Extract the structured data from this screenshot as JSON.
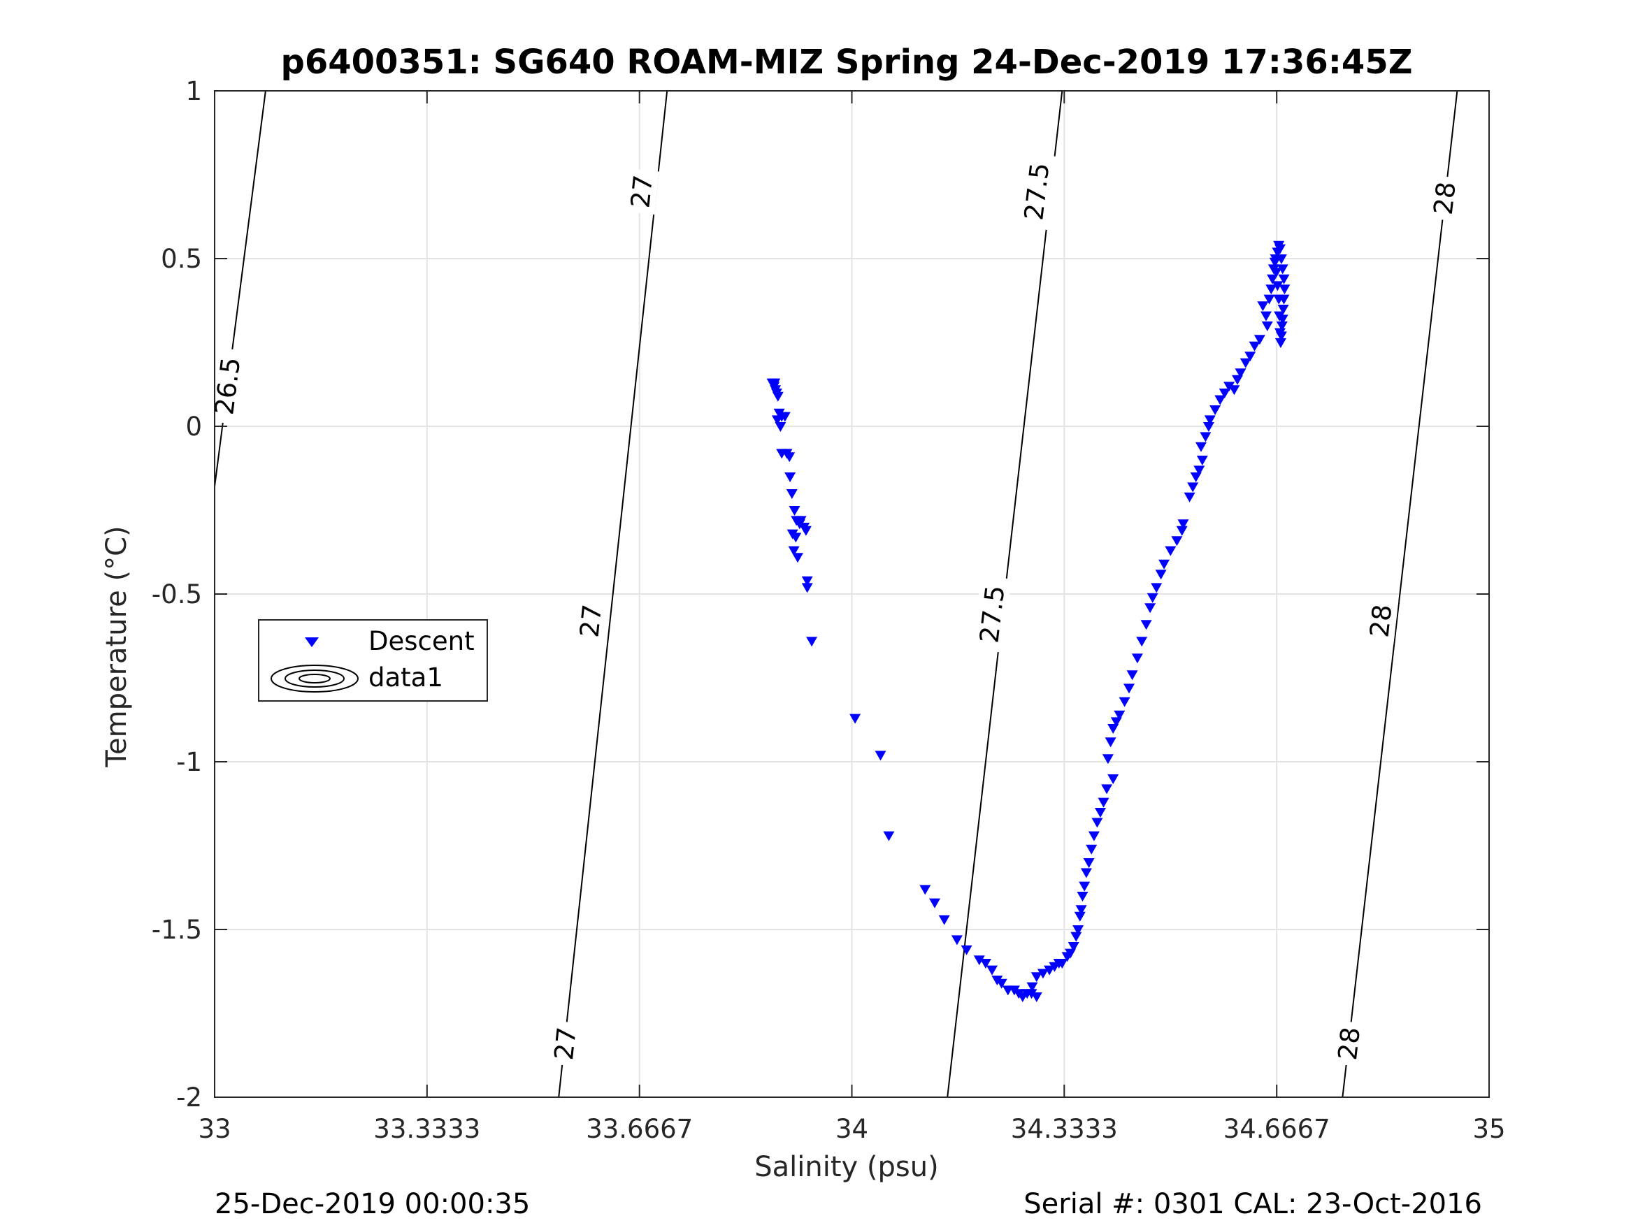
{
  "chart_data": {
    "type": "scatter",
    "title": "p6400351: SG640 ROAM-MIZ Spring 24-Dec-2019 17:36:45Z",
    "xlabel": "Salinity (psu)",
    "ylabel": "Temperature (°C)",
    "xlim": [
      33,
      35
    ],
    "ylim": [
      -2,
      1
    ],
    "xticks": [
      33,
      33.3333,
      33.6667,
      34,
      34.3333,
      34.6667,
      35
    ],
    "xtick_labels": [
      "33",
      "33.3333",
      "33.6667",
      "34",
      "34.3333",
      "34.6667",
      "35"
    ],
    "yticks": [
      -2,
      -1.5,
      -1,
      -0.5,
      0,
      0.5,
      1
    ],
    "ytick_labels": [
      "-2",
      "-1.5",
      "-1",
      "-0.5",
      "0",
      "0.5",
      "1"
    ],
    "grid": true,
    "legend": {
      "placement": "left-middle",
      "entries": [
        "Descent",
        "data1"
      ]
    },
    "series": [
      {
        "name": "Descent",
        "marker": "triangle-down",
        "color": "#0000ff",
        "points": [
          [
            33.875,
            0.13
          ],
          [
            33.878,
            0.12
          ],
          [
            33.88,
            0.11
          ],
          [
            33.882,
            0.1
          ],
          [
            33.879,
            0.13
          ],
          [
            33.884,
            0.09
          ],
          [
            33.886,
            0.04
          ],
          [
            33.89,
            0.03
          ],
          [
            33.888,
            0.0
          ],
          [
            33.883,
            0.02
          ],
          [
            33.895,
            0.03
          ],
          [
            33.89,
            -0.08
          ],
          [
            33.898,
            -0.08
          ],
          [
            33.902,
            -0.09
          ],
          [
            33.903,
            -0.15
          ],
          [
            33.906,
            -0.2
          ],
          [
            33.91,
            -0.25
          ],
          [
            33.913,
            -0.28
          ],
          [
            33.918,
            -0.29
          ],
          [
            33.925,
            -0.3
          ],
          [
            33.92,
            -0.28
          ],
          [
            33.912,
            -0.33
          ],
          [
            33.907,
            -0.32
          ],
          [
            33.909,
            -0.37
          ],
          [
            33.915,
            -0.39
          ],
          [
            33.928,
            -0.31
          ],
          [
            33.93,
            -0.46
          ],
          [
            33.93,
            -0.48
          ],
          [
            33.937,
            -0.64
          ],
          [
            34.005,
            -0.87
          ],
          [
            34.045,
            -0.98
          ],
          [
            34.058,
            -1.22
          ],
          [
            34.115,
            -1.38
          ],
          [
            34.13,
            -1.42
          ],
          [
            34.145,
            -1.47
          ],
          [
            34.165,
            -1.53
          ],
          [
            34.18,
            -1.56
          ],
          [
            34.2,
            -1.59
          ],
          [
            34.21,
            -1.6
          ],
          [
            34.22,
            -1.62
          ],
          [
            34.228,
            -1.65
          ],
          [
            34.235,
            -1.66
          ],
          [
            34.245,
            -1.68
          ],
          [
            34.255,
            -1.68
          ],
          [
            34.262,
            -1.69
          ],
          [
            34.268,
            -1.7
          ],
          [
            34.275,
            -1.69
          ],
          [
            34.282,
            -1.69
          ],
          [
            34.29,
            -1.7
          ],
          [
            34.283,
            -1.67
          ],
          [
            34.29,
            -1.64
          ],
          [
            34.3,
            -1.63
          ],
          [
            34.31,
            -1.62
          ],
          [
            34.318,
            -1.61
          ],
          [
            34.325,
            -1.6
          ],
          [
            34.33,
            -1.6
          ],
          [
            34.338,
            -1.58
          ],
          [
            34.343,
            -1.57
          ],
          [
            34.348,
            -1.55
          ],
          [
            34.352,
            -1.52
          ],
          [
            34.355,
            -1.5
          ],
          [
            34.358,
            -1.46
          ],
          [
            34.36,
            -1.44
          ],
          [
            34.362,
            -1.4
          ],
          [
            34.365,
            -1.37
          ],
          [
            34.368,
            -1.33
          ],
          [
            34.372,
            -1.3
          ],
          [
            34.376,
            -1.26
          ],
          [
            34.38,
            -1.22
          ],
          [
            34.385,
            -1.18
          ],
          [
            34.39,
            -1.15
          ],
          [
            34.395,
            -1.12
          ],
          [
            34.4,
            -1.08
          ],
          [
            34.41,
            -1.05
          ],
          [
            34.402,
            -0.99
          ],
          [
            34.406,
            -0.94
          ],
          [
            34.41,
            -0.9
          ],
          [
            34.415,
            -0.88
          ],
          [
            34.42,
            -0.86
          ],
          [
            34.428,
            -0.82
          ],
          [
            34.435,
            -0.78
          ],
          [
            34.44,
            -0.74
          ],
          [
            34.448,
            -0.69
          ],
          [
            34.455,
            -0.64
          ],
          [
            34.462,
            -0.59
          ],
          [
            34.468,
            -0.54
          ],
          [
            34.472,
            -0.51
          ],
          [
            34.478,
            -0.48
          ],
          [
            34.485,
            -0.44
          ],
          [
            34.49,
            -0.41
          ],
          [
            34.5,
            -0.37
          ],
          [
            34.51,
            -0.34
          ],
          [
            34.518,
            -0.31
          ],
          [
            34.52,
            -0.29
          ],
          [
            34.53,
            -0.21
          ],
          [
            34.535,
            -0.18
          ],
          [
            34.54,
            -0.15
          ],
          [
            34.545,
            -0.13
          ],
          [
            34.55,
            -0.1
          ],
          [
            34.548,
            -0.06
          ],
          [
            34.555,
            -0.03
          ],
          [
            34.56,
            0.0
          ],
          [
            34.562,
            0.02
          ],
          [
            34.57,
            0.05
          ],
          [
            34.578,
            0.08
          ],
          [
            34.585,
            0.1
          ],
          [
            34.592,
            0.12
          ],
          [
            34.6,
            0.11
          ],
          [
            34.605,
            0.14
          ],
          [
            34.61,
            0.16
          ],
          [
            34.618,
            0.19
          ],
          [
            34.625,
            0.21
          ],
          [
            34.632,
            0.24
          ],
          [
            34.64,
            0.26
          ],
          [
            34.645,
            0.36
          ],
          [
            34.65,
            0.33
          ],
          [
            34.652,
            0.3
          ],
          [
            34.655,
            0.38
          ],
          [
            34.658,
            0.41
          ],
          [
            34.66,
            0.44
          ],
          [
            34.662,
            0.47
          ],
          [
            34.665,
            0.5
          ],
          [
            34.668,
            0.52
          ],
          [
            34.67,
            0.54
          ],
          [
            34.672,
            0.53
          ],
          [
            34.674,
            0.5
          ],
          [
            34.676,
            0.47
          ],
          [
            34.678,
            0.44
          ],
          [
            34.679,
            0.41
          ],
          [
            34.678,
            0.38
          ],
          [
            34.677,
            0.35
          ],
          [
            34.676,
            0.32
          ],
          [
            34.675,
            0.3
          ],
          [
            34.674,
            0.27
          ],
          [
            34.673,
            0.25
          ],
          [
            34.672,
            0.28
          ],
          [
            34.671,
            0.33
          ],
          [
            34.67,
            0.38
          ],
          [
            34.668,
            0.42
          ],
          [
            34.666,
            0.46
          ],
          [
            34.664,
            0.49
          ]
        ]
      }
    ],
    "contours": {
      "series_name": "data1",
      "color": "#000000",
      "lines": [
        {
          "label": "26.5",
          "points": [
            [
              33.0,
              -0.18
            ],
            [
              33.08,
              1.0
            ]
          ]
        },
        {
          "label": "27",
          "points": [
            [
              33.54,
              -2.0
            ],
            [
              33.71,
              1.0
            ]
          ]
        },
        {
          "label": "27.5",
          "points": [
            [
              34.15,
              -2.0
            ],
            [
              34.33,
              1.0
            ]
          ]
        },
        {
          "label": "28",
          "points": [
            [
              34.77,
              -2.0
            ],
            [
              34.95,
              1.0
            ]
          ]
        }
      ],
      "labels": [
        {
          "text": "26.5",
          "at": [
            33.02,
            0.12
          ]
        },
        {
          "text": "27",
          "at": [
            33.67,
            0.7
          ]
        },
        {
          "text": "27",
          "at": [
            33.59,
            -0.58
          ]
        },
        {
          "text": "27",
          "at": [
            33.55,
            -1.84
          ]
        },
        {
          "text": "27.5",
          "at": [
            34.29,
            0.7
          ]
        },
        {
          "text": "27.5",
          "at": [
            34.22,
            -0.56
          ]
        },
        {
          "text": "28",
          "at": [
            34.93,
            0.68
          ]
        },
        {
          "text": "28",
          "at": [
            34.83,
            -0.58
          ]
        },
        {
          "text": "28",
          "at": [
            34.78,
            -1.84
          ]
        }
      ]
    },
    "footer": {
      "left": "25-Dec-2019 00:00:35",
      "right": "Serial #: 0301  CAL: 23-Oct-2016"
    }
  }
}
